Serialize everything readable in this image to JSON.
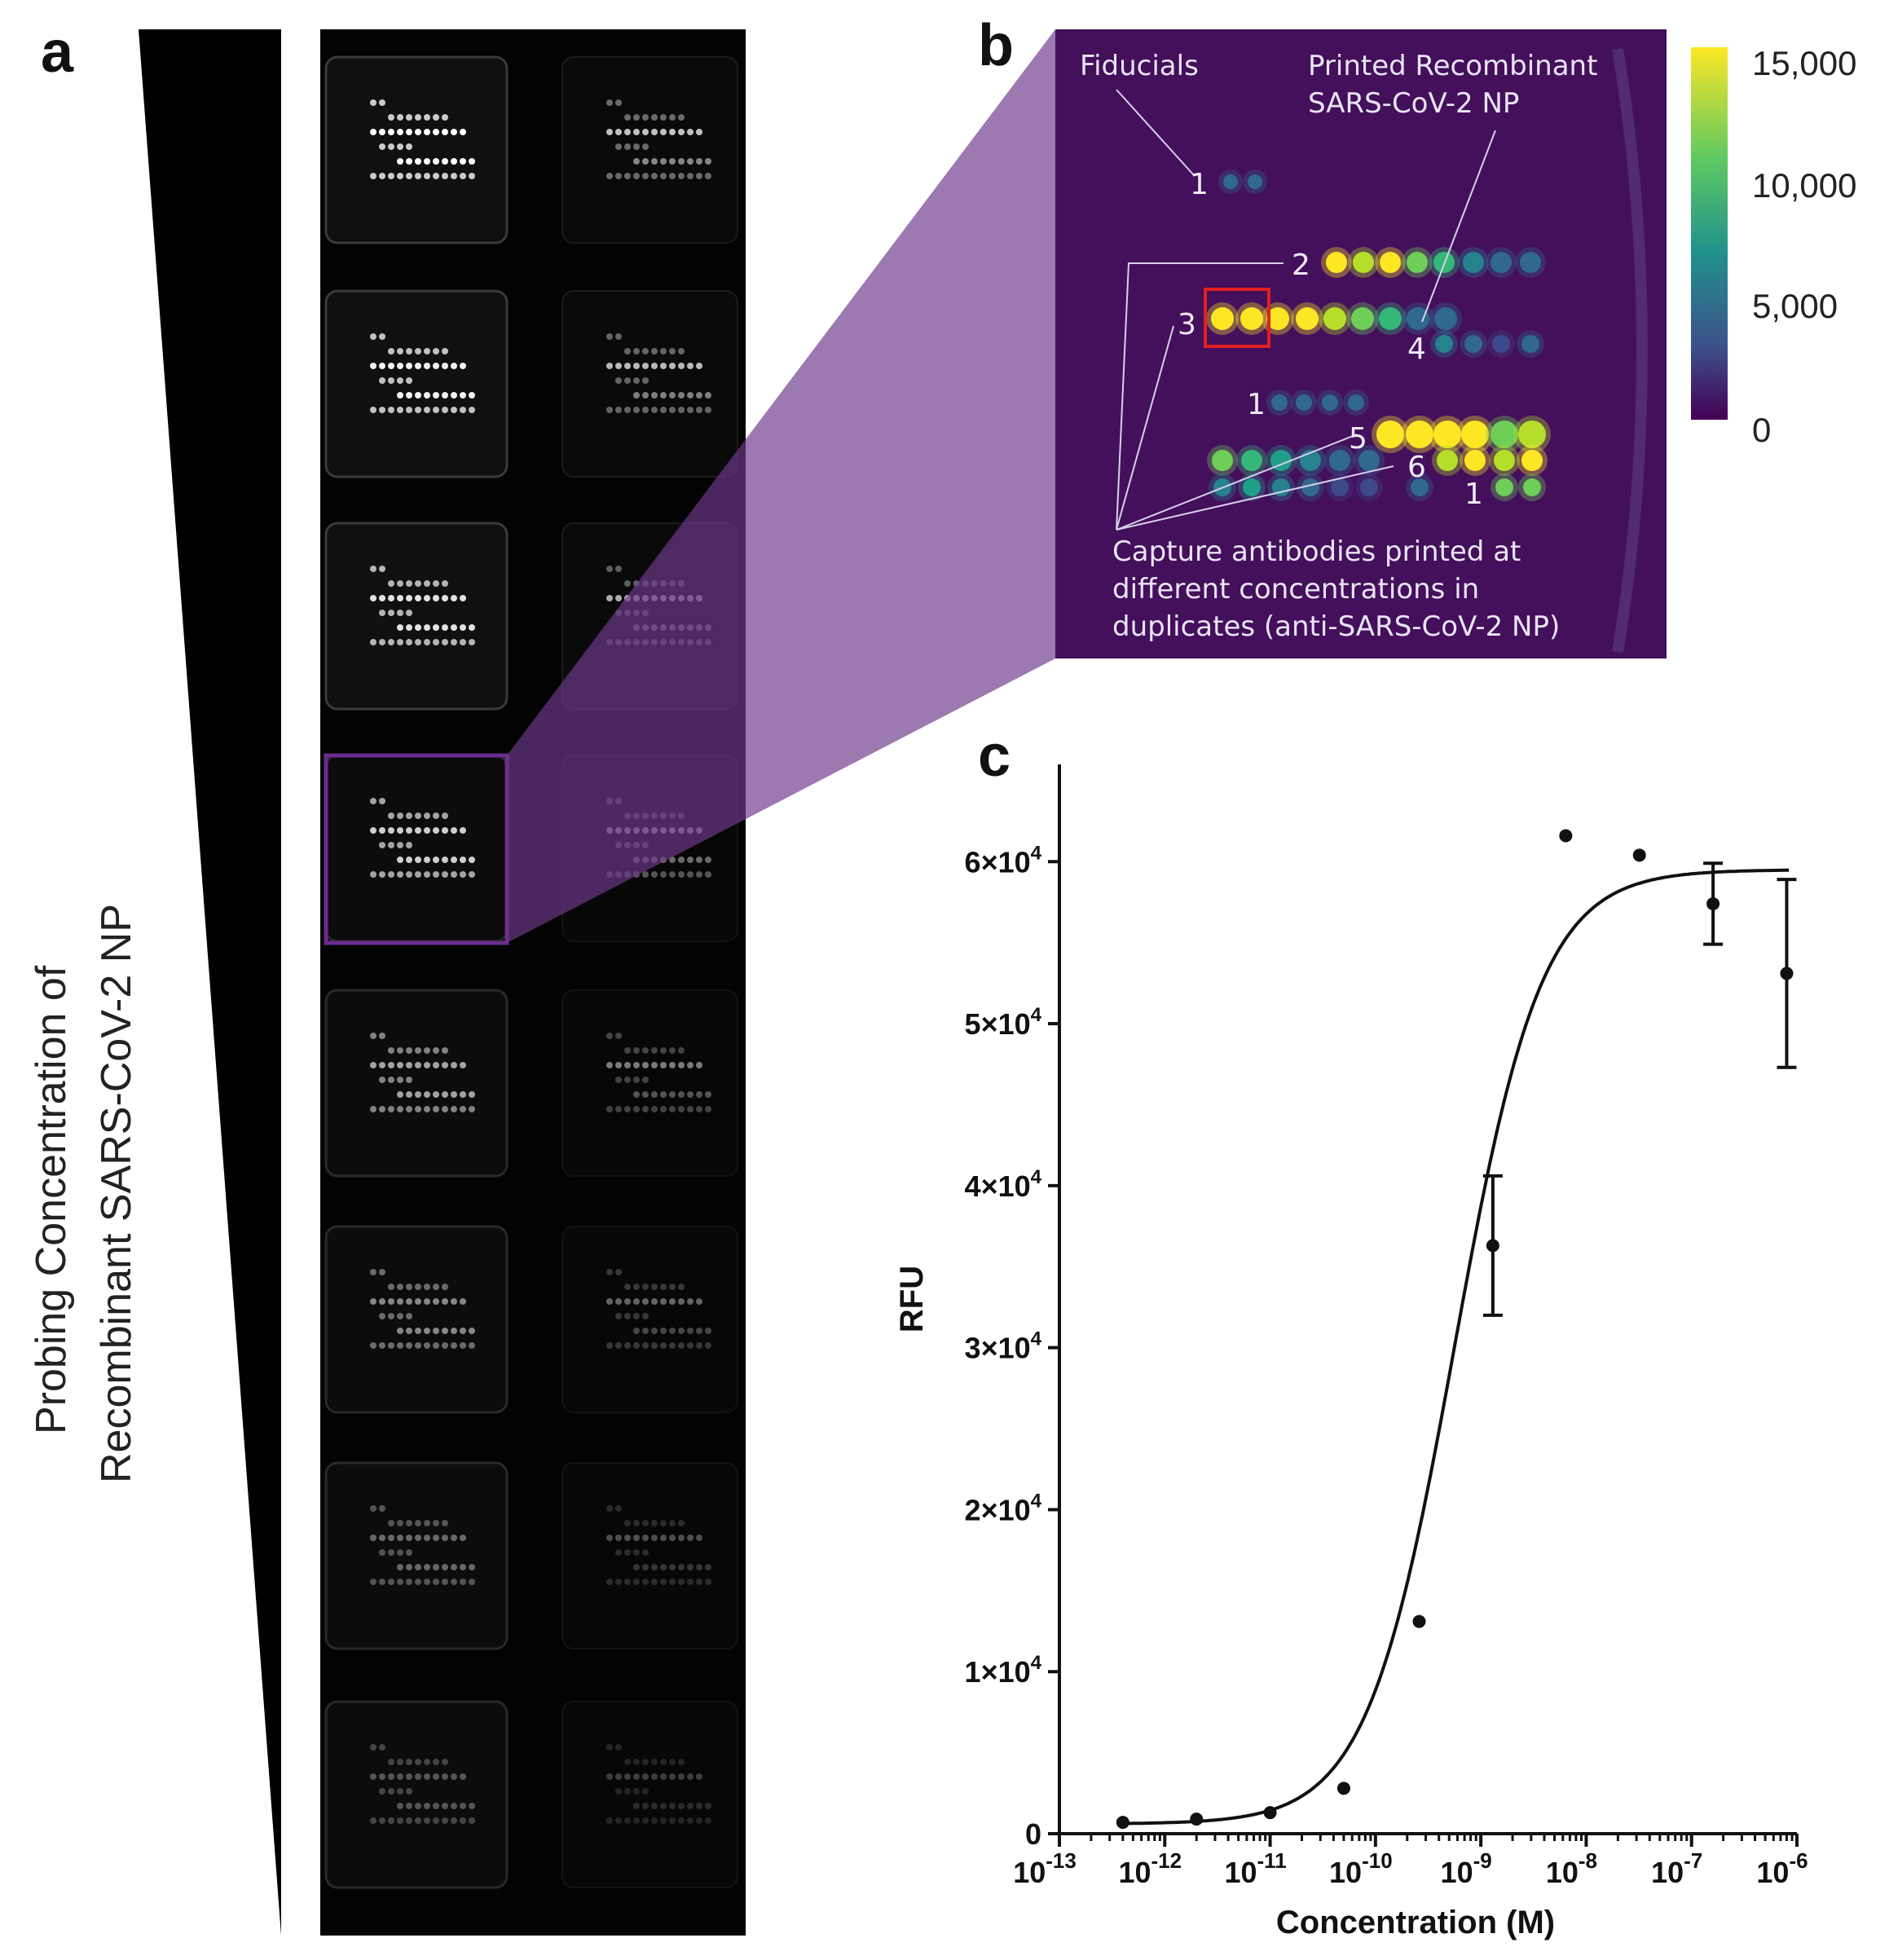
{
  "panels": {
    "a": {
      "label": "a",
      "gradient_label_line1": "Probing Concentration of",
      "gradient_label_line2": "Recombinant SARS-CoV-2 NP",
      "row_intensity": [
        1.0,
        0.95,
        0.88,
        0.8,
        0.62,
        0.5,
        0.38,
        0.3
      ],
      "highlighted_row": 4,
      "highlight_color": "#6a2c8f"
    },
    "b": {
      "label": "b",
      "background_color": "#440f5b",
      "annotations": {
        "fiducials": "Fiducials",
        "printed_line1": "Printed Recombinant",
        "printed_line2": "SARS-CoV-2 NP",
        "capture_line1": "Capture antibodies printed at",
        "capture_line2": "different concentrations in",
        "capture_line3": "duplicates (anti-SARS-CoV-2 NP)"
      },
      "numbers": {
        "n_fid_top": "1",
        "n2": "2",
        "n3": "3",
        "n4": "4",
        "n_fid_mid": "1",
        "n5": "5",
        "n6": "6",
        "n_fid_bot": "1"
      },
      "colorbar": {
        "ticks": [
          "15,000",
          "10,000",
          "5,000",
          "0"
        ],
        "max": 15000
      }
    },
    "c": {
      "label": "c",
      "chart_data": {
        "type": "scatter",
        "title": "",
        "xlabel": "Concentration (M)",
        "ylabel": "RFU",
        "x_scale": "log",
        "xlim_exponent": [
          -13,
          -6
        ],
        "x_tick_base": "10",
        "x_tick_exponents": [
          "-13",
          "-12",
          "-11",
          "-10",
          "-9",
          "-8",
          "-7",
          "-6"
        ],
        "ylim": [
          0,
          66000
        ],
        "y_tick_values": [
          0,
          10000,
          20000,
          30000,
          40000,
          50000,
          60000
        ],
        "y_tick_labels": [
          {
            "label": "0",
            "mant": "",
            "exp": ""
          },
          {
            "label": "",
            "mant": "1×10",
            "exp": "4"
          },
          {
            "label": "",
            "mant": "2×10",
            "exp": "4"
          },
          {
            "label": "",
            "mant": "3×10",
            "exp": "4"
          },
          {
            "label": "",
            "mant": "4×10",
            "exp": "4"
          },
          {
            "label": "",
            "mant": "5×10",
            "exp": "4"
          },
          {
            "label": "",
            "mant": "6×10",
            "exp": "4"
          }
        ],
        "points": [
          {
            "x": 4e-13,
            "y": 700
          },
          {
            "x": 2e-12,
            "y": 900
          },
          {
            "x": 1e-11,
            "y": 1300
          },
          {
            "x": 5e-11,
            "y": 2800
          },
          {
            "x": 2.6e-10,
            "y": 13100
          },
          {
            "x": 1.3e-09,
            "y": 36300,
            "err": 4300
          },
          {
            "x": 6.4e-09,
            "y": 61600
          },
          {
            "x": 3.2e-08,
            "y": 60400
          },
          {
            "x": 1.6e-07,
            "y": 57400,
            "err": 2500
          },
          {
            "x": 8e-07,
            "y": 53100,
            "err": 5800
          }
        ],
        "fit": {
          "bottom": 600,
          "top": 59500,
          "log_ec50": -9.25,
          "hill": 1.05
        }
      }
    }
  }
}
